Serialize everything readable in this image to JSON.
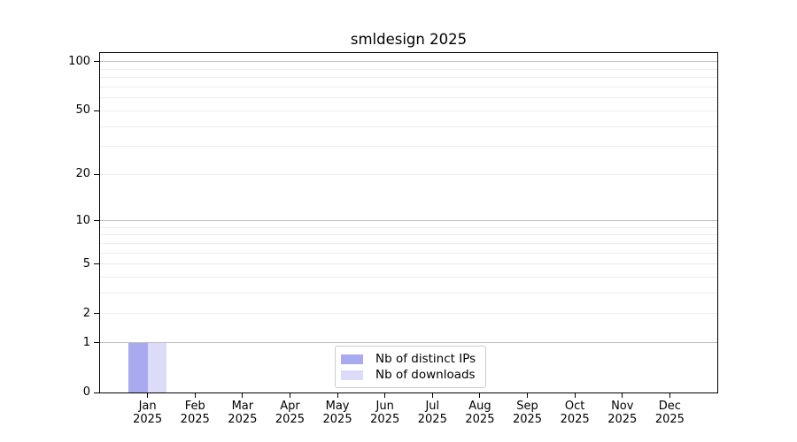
{
  "title": "smldesign 2025",
  "chart_data": {
    "type": "bar",
    "title": "smldesign 2025",
    "x": {
      "months": [
        "Jan",
        "Feb",
        "Mar",
        "Apr",
        "May",
        "Jun",
        "Jul",
        "Aug",
        "Sep",
        "Oct",
        "Nov",
        "Dec"
      ],
      "year": "2025"
    },
    "series": [
      {
        "name": "Nb of distinct IPs",
        "color": "#a9a9f0",
        "values": [
          1,
          0,
          0,
          0,
          0,
          0,
          0,
          0,
          0,
          0,
          0,
          0
        ]
      },
      {
        "name": "Nb of downloads",
        "color": "#dcdcf8",
        "values": [
          1,
          0,
          0,
          0,
          0,
          0,
          0,
          0,
          0,
          0,
          0,
          0
        ]
      }
    ],
    "yscale": "log1p",
    "ylim": [
      0,
      113
    ],
    "y_tick_values": [
      0,
      1,
      2,
      5,
      10,
      20,
      50,
      100
    ],
    "gridlines": {
      "major_values": [
        1,
        10,
        100
      ],
      "minor_values": [
        2,
        3,
        4,
        5,
        6,
        7,
        8,
        9,
        20,
        30,
        40,
        50,
        60,
        70,
        80,
        90
      ],
      "major_color": "#c0c0c0",
      "minor_color": "#ececec"
    },
    "axis_color": "#000000",
    "legend": {
      "position": "lower center"
    },
    "grid": true
  }
}
